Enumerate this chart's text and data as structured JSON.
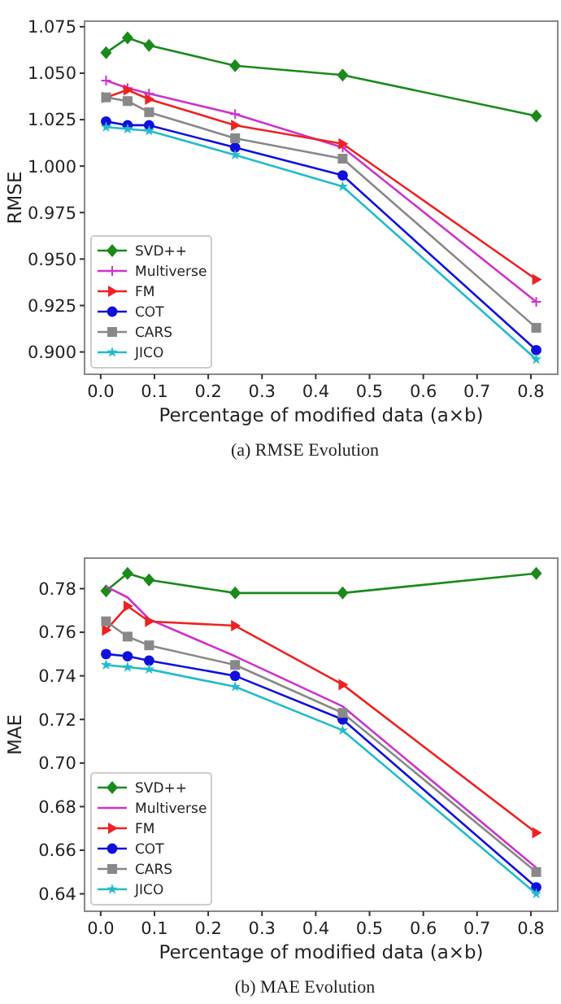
{
  "chart_data": [
    {
      "type": "line",
      "title": "(a) RMSE Evolution",
      "xlabel": "Percentage of modified data (a×b)",
      "ylabel": "RMSE",
      "x": [
        0.01,
        0.05,
        0.09,
        0.25,
        0.45,
        0.81
      ],
      "xlim": [
        -0.03,
        0.85
      ],
      "xticks": [
        {
          "value": 0,
          "label": "0.0"
        },
        0.1,
        0.2,
        0.3,
        0.4,
        0.5,
        0.6,
        0.7,
        0.8
      ],
      "ylim": [
        0.888,
        1.078
      ],
      "yticks": [
        {
          "value": 0.9,
          "label": "0.900"
        },
        0.925,
        {
          "value": 0.95,
          "label": "0.950"
        },
        0.975,
        {
          "value": 1,
          "label": "1.000"
        },
        1.025,
        {
          "value": 1.05,
          "label": "1.050"
        },
        1.075
      ],
      "grid": false,
      "legend": "bottom left",
      "series": [
        {
          "name": "SVD++",
          "color": "#1a8a1a",
          "marker": "diamond",
          "values": [
            1.061,
            1.069,
            1.065,
            1.054,
            1.049,
            1.027
          ]
        },
        {
          "name": "Multiverse",
          "color": "#cc33cc",
          "marker": "cross",
          "values": [
            1.046,
            1.042,
            1.039,
            1.028,
            1.01,
            0.927
          ]
        },
        {
          "name": "FM",
          "color": "#ee2222",
          "marker": "triangle",
          "values": [
            1.037,
            1.041,
            1.036,
            1.022,
            1.012,
            0.939
          ]
        },
        {
          "name": "COT",
          "color": "#1010dd",
          "marker": "circle",
          "values": [
            1.024,
            1.022,
            1.022,
            1.01,
            0.995,
            0.901
          ]
        },
        {
          "name": "CARS",
          "color": "#888888",
          "marker": "square",
          "values": [
            1.037,
            1.035,
            1.029,
            1.015,
            1.004,
            0.913
          ]
        },
        {
          "name": "JICO",
          "color": "#22bbcc",
          "marker": "star",
          "values": [
            1.021,
            1.02,
            1.019,
            1.006,
            0.989,
            0.896
          ]
        }
      ]
    },
    {
      "type": "line",
      "title": "(b) MAE Evolution",
      "xlabel": "Percentage of modified data (a×b)",
      "ylabel": "MAE",
      "x": [
        0.01,
        0.05,
        0.09,
        0.25,
        0.45,
        0.81
      ],
      "xlim": [
        -0.03,
        0.85
      ],
      "xticks": [
        {
          "value": 0,
          "label": "0.0"
        },
        0.1,
        0.2,
        0.3,
        0.4,
        0.5,
        0.6,
        0.7,
        0.8
      ],
      "ylim": [
        0.632,
        0.794
      ],
      "yticks": [
        0.64,
        0.66,
        0.68,
        {
          "value": 0.7,
          "label": "0.70"
        },
        0.72,
        0.74,
        0.76,
        0.78
      ],
      "grid": false,
      "legend": "bottom left",
      "series": [
        {
          "name": "SVD++",
          "color": "#1a8a1a",
          "marker": "diamond",
          "values": [
            0.779,
            0.787,
            0.784,
            0.778,
            0.778,
            0.787
          ]
        },
        {
          "name": "Multiverse",
          "color": "#cc33cc",
          "marker": "none",
          "values": [
            0.781,
            0.776,
            0.766,
            0.749,
            0.726,
            0.652
          ]
        },
        {
          "name": "FM",
          "color": "#ee2222",
          "marker": "triangle",
          "values": [
            0.761,
            0.772,
            0.765,
            0.763,
            0.736,
            0.668
          ]
        },
        {
          "name": "COT",
          "color": "#1010dd",
          "marker": "circle",
          "values": [
            0.75,
            0.749,
            0.747,
            0.74,
            0.72,
            0.643
          ]
        },
        {
          "name": "CARS",
          "color": "#888888",
          "marker": "square",
          "values": [
            0.765,
            0.758,
            0.754,
            0.745,
            0.723,
            0.65
          ]
        },
        {
          "name": "JICO",
          "color": "#22bbcc",
          "marker": "star",
          "values": [
            0.745,
            0.744,
            0.743,
            0.735,
            0.715,
            0.64
          ]
        }
      ]
    }
  ]
}
